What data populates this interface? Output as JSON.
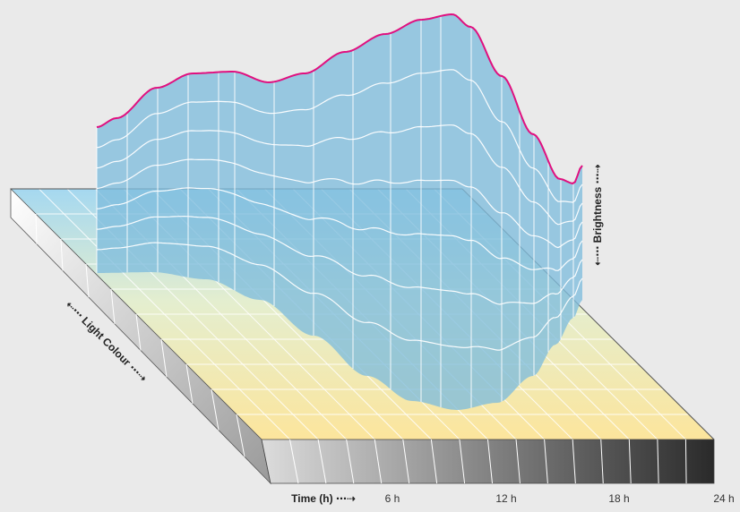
{
  "labels": {
    "brightness": "⇠⋯ Brightness ⋯⇢",
    "light_colour": "⇠⋯ Light Colour ⋯⇢",
    "time_axis": "Time (h) ⋯⇢"
  },
  "time_ticks": [
    "6 h",
    "12 h",
    "18 h",
    "24 h"
  ],
  "colors": {
    "background": "#eaeaea",
    "curve": "#e0107f",
    "curtain": "#7fbcdc",
    "grid_line": "#ffffff",
    "plane_cool": "#9ed4ee",
    "plane_warm": "#fbe79a"
  }
}
